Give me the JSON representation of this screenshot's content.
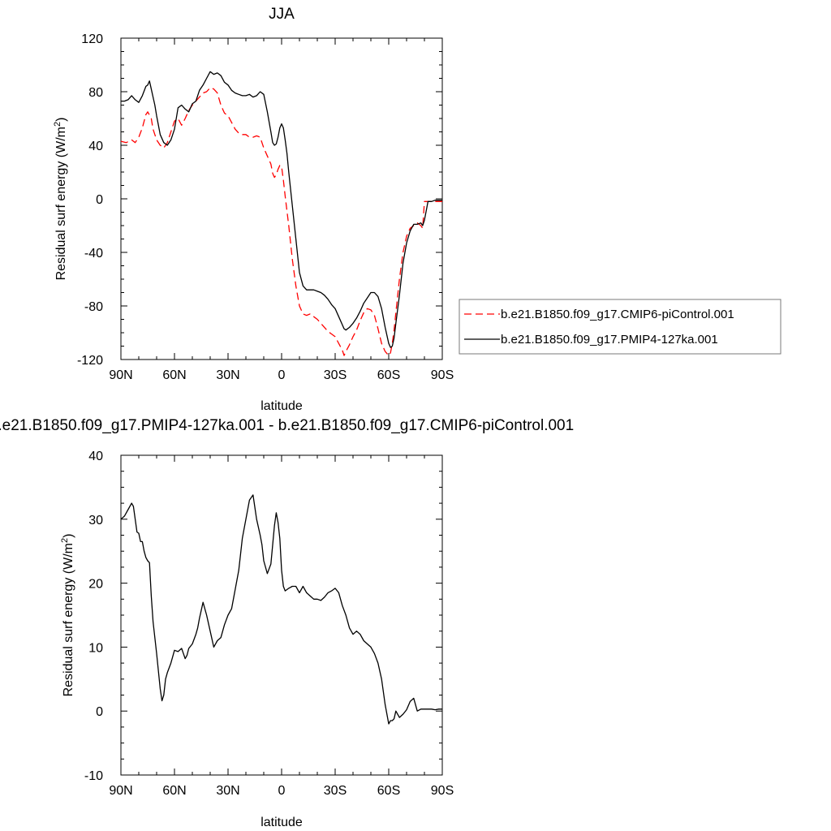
{
  "chart_data": [
    {
      "type": "line",
      "title": "JJA",
      "xlabel": "latitude",
      "ylabel": "Residual surf energy (W/m²)",
      "ylabel_main": "Residual surf energy (W/m",
      "ylabel_sup": "2",
      "ylabel_end": ")",
      "xlim": [
        90,
        -90
      ],
      "ylim": [
        -120,
        120
      ],
      "x_ticks": [
        90,
        60,
        30,
        0,
        -30,
        -60,
        -90
      ],
      "x_tick_labels": [
        "90N",
        "60N",
        "30N",
        "0",
        "30S",
        "60S",
        "90S"
      ],
      "y_ticks": [
        120,
        80,
        40,
        0,
        -40,
        -80,
        -120
      ],
      "y_tick_labels": [
        "120",
        "80",
        "40",
        "0",
        "-40",
        "-80",
        "-120"
      ],
      "grid": false,
      "legend_position": "right",
      "series": [
        {
          "name": "b.e21.B1850.f09_g17.CMIP6-piControl.001",
          "color": "#ff0000",
          "dash": "dashed",
          "x": [
            90,
            87,
            84,
            82,
            80,
            78,
            76,
            75,
            73,
            72,
            70,
            68,
            66,
            64,
            62,
            60,
            58,
            56,
            54,
            52,
            50,
            48,
            46,
            44,
            42,
            40,
            38,
            36,
            34,
            32,
            30,
            28,
            26,
            24,
            22,
            20,
            18,
            16,
            14,
            12,
            10,
            8,
            6,
            5,
            4,
            3,
            2,
            1,
            0,
            -1,
            -2,
            -4,
            -6,
            -8,
            -10,
            -12,
            -14,
            -16,
            -18,
            -20,
            -22,
            -24,
            -26,
            -28,
            -30,
            -32,
            -34,
            -35,
            -36,
            -38,
            -40,
            -42,
            -44,
            -46,
            -48,
            -50,
            -52,
            -54,
            -56,
            -58,
            -60,
            -61,
            -62,
            -63,
            -64,
            -66,
            -68,
            -70,
            -72,
            -74,
            -76,
            -78,
            -79,
            -80,
            -82,
            -84,
            -86,
            -88,
            -90
          ],
          "y": [
            43,
            42,
            44,
            42,
            46,
            53,
            63,
            65,
            60,
            52,
            44,
            40,
            38,
            42,
            50,
            58,
            60,
            55,
            60,
            66,
            70,
            73,
            76,
            79,
            80,
            83,
            82,
            79,
            70,
            64,
            62,
            57,
            52,
            49,
            48,
            48,
            46,
            46,
            47,
            46,
            38,
            32,
            26,
            19,
            16,
            18,
            22,
            25,
            24,
            14,
            2,
            -20,
            -45,
            -65,
            -80,
            -86,
            -87,
            -86,
            -88,
            -90,
            -93,
            -96,
            -99,
            -101,
            -103,
            -108,
            -113,
            -117,
            -114,
            -109,
            -103,
            -98,
            -91,
            -85,
            -82,
            -83,
            -87,
            -97,
            -108,
            -114,
            -117,
            -115,
            -108,
            -98,
            -85,
            -60,
            -40,
            -28,
            -22,
            -20,
            -18,
            -20,
            -22,
            -2,
            -2,
            -2,
            -2,
            -2,
            -2
          ]
        },
        {
          "name": "b.e21.B1850.f09_g17.PMIP4-127ka.001",
          "color": "#000000",
          "dash": "solid",
          "x": [
            90,
            88,
            86,
            84,
            82,
            80,
            78,
            76,
            75,
            74,
            73,
            72,
            71,
            70,
            68,
            66,
            64,
            62,
            60,
            58,
            56,
            54,
            52,
            50,
            48,
            46,
            44,
            42,
            40,
            38,
            36,
            34,
            32,
            30,
            28,
            26,
            24,
            22,
            20,
            18,
            16,
            14,
            12,
            10,
            8,
            6,
            5,
            4,
            3,
            2,
            1,
            0,
            -1,
            -2,
            -3,
            -4,
            -6,
            -8,
            -10,
            -12,
            -14,
            -16,
            -18,
            -20,
            -22,
            -24,
            -26,
            -28,
            -30,
            -32,
            -34,
            -35,
            -36,
            -38,
            -40,
            -42,
            -44,
            -46,
            -48,
            -50,
            -52,
            -54,
            -56,
            -58,
            -60,
            -61,
            -62,
            -63,
            -64,
            -66,
            -68,
            -70,
            -72,
            -74,
            -76,
            -78,
            -79,
            -80,
            -82,
            -84,
            -86,
            -88,
            -90
          ],
          "y": [
            73,
            73,
            74,
            77,
            74,
            72,
            77,
            84,
            85,
            88,
            82,
            76,
            70,
            62,
            48,
            42,
            40,
            44,
            52,
            68,
            70,
            67,
            65,
            71,
            73,
            81,
            85,
            90,
            95,
            93,
            94,
            92,
            87,
            85,
            81,
            79,
            78,
            77,
            77,
            78,
            76,
            77,
            80,
            78,
            65,
            50,
            42,
            40,
            41,
            46,
            53,
            56,
            53,
            44,
            34,
            20,
            -5,
            -30,
            -55,
            -65,
            -68,
            -68,
            -68,
            -69,
            -70,
            -72,
            -75,
            -79,
            -82,
            -88,
            -94,
            -97,
            -98,
            -96,
            -93,
            -89,
            -84,
            -78,
            -74,
            -70,
            -70,
            -73,
            -82,
            -96,
            -108,
            -111,
            -110,
            -104,
            -93,
            -72,
            -48,
            -33,
            -24,
            -19,
            -19,
            -18,
            -20,
            -16,
            -2,
            -2,
            -1,
            -1,
            -1
          ]
        }
      ]
    },
    {
      "type": "line",
      "title": "b.e21.B1850.f09_g17.PMIP4-127ka.001 - b.e21.B1850.f09_g17.CMIP6-piControl.001",
      "xlabel": "latitude",
      "ylabel": "Residual surf energy (W/m²)",
      "ylabel_main": "Residual surf energy (W/m",
      "ylabel_sup": "2",
      "ylabel_end": ")",
      "xlim": [
        90,
        -90
      ],
      "ylim": [
        -10,
        40
      ],
      "x_ticks": [
        90,
        60,
        30,
        0,
        -30,
        -60,
        -90
      ],
      "x_tick_labels": [
        "90N",
        "60N",
        "30N",
        "0",
        "30S",
        "60S",
        "90S"
      ],
      "y_ticks": [
        40,
        30,
        20,
        10,
        0,
        -10
      ],
      "y_tick_labels": [
        "40",
        "30",
        "20",
        "10",
        "0",
        "-10"
      ],
      "grid": false,
      "series": [
        {
          "color": "#000000",
          "dash": "solid",
          "x": [
            90,
            88,
            86,
            84,
            83,
            82,
            81,
            80,
            79,
            78,
            77,
            76,
            75,
            74,
            73,
            72,
            70,
            68,
            67,
            66,
            65,
            64,
            62,
            60,
            58,
            56,
            55,
            54,
            53,
            52,
            50,
            48,
            47,
            46,
            44,
            42,
            40,
            38,
            36,
            34,
            32,
            30,
            28,
            26,
            24,
            22,
            20,
            18,
            16,
            14,
            12,
            11,
            10,
            8,
            6,
            5,
            4,
            3,
            2,
            1,
            0,
            -1,
            -2,
            -4,
            -6,
            -8,
            -10,
            -12,
            -14,
            -16,
            -18,
            -20,
            -22,
            -24,
            -26,
            -28,
            -30,
            -32,
            -34,
            -36,
            -38,
            -40,
            -42,
            -44,
            -46,
            -48,
            -50,
            -52,
            -54,
            -56,
            -58,
            -60,
            -61,
            -62,
            -63,
            -64,
            -66,
            -68,
            -70,
            -72,
            -74,
            -76,
            -78,
            -80,
            -82,
            -84,
            -86,
            -88,
            -90
          ],
          "y": [
            30,
            30.5,
            31.5,
            32.5,
            32,
            30,
            28,
            27.8,
            26.5,
            26.5,
            25,
            24,
            23.5,
            23.2,
            18,
            14,
            9,
            3.5,
            1.6,
            2.5,
            5,
            6,
            7.5,
            9.5,
            9.3,
            9.8,
            9,
            8.2,
            8.7,
            9.8,
            10.5,
            12,
            13,
            14.5,
            17,
            15,
            12.5,
            10,
            11,
            11.5,
            13.5,
            15,
            16,
            19,
            22,
            27,
            30,
            33,
            33.8,
            30,
            27.5,
            26,
            23.5,
            21.5,
            23,
            26,
            29,
            31,
            29.5,
            27,
            22,
            19.5,
            18.8,
            19.2,
            19.5,
            19.5,
            18.5,
            19.5,
            18.5,
            18,
            17.5,
            17.5,
            17.3,
            17.8,
            18.5,
            18.8,
            19.2,
            18.5,
            16.5,
            15,
            13,
            12,
            12.5,
            12,
            11,
            10.5,
            10,
            9,
            7.5,
            5,
            1,
            -2,
            -1.5,
            -1.5,
            -1.2,
            0,
            -1,
            -0.5,
            0.2,
            1.5,
            2,
            0,
            0.3,
            0.3,
            0.3,
            0.3,
            0.2,
            0.3,
            0.3
          ]
        }
      ]
    }
  ]
}
